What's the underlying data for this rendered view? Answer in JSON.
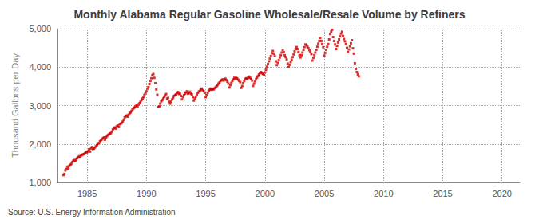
{
  "chart_data": {
    "type": "scatter",
    "title": "Monthly Alabama Regular Gasoline Wholesale/Resale Volume by Refiners",
    "ylabel": "Thousand Gallons per Day",
    "annotations": [
      "Source: U.S. Energy Information Administration"
    ],
    "color": "#cc0000",
    "marker": "square",
    "grid": true,
    "xlim": [
      1982.5,
      2021.5
    ],
    "ylim": [
      1000,
      5000
    ],
    "xticks": [
      1985,
      1990,
      1995,
      2000,
      2005,
      2010,
      2015,
      2020
    ],
    "yticks": [
      {
        "value": 1000,
        "label": "1,000"
      },
      {
        "value": 2000,
        "label": "2,000"
      },
      {
        "value": 3000,
        "label": "3,000"
      },
      {
        "value": 4000,
        "label": "4,000"
      },
      {
        "value": 5000,
        "label": "5,000"
      }
    ],
    "x": [
      1983.0,
      1983.083,
      1983.167,
      1983.25,
      1983.333,
      1983.417,
      1983.5,
      1983.583,
      1983.667,
      1983.75,
      1983.833,
      1983.917,
      1984.0,
      1984.083,
      1984.167,
      1984.25,
      1984.333,
      1984.417,
      1984.5,
      1984.583,
      1984.667,
      1984.75,
      1984.833,
      1984.917,
      1985.0,
      1985.083,
      1985.167,
      1985.25,
      1985.333,
      1985.417,
      1985.5,
      1985.583,
      1985.667,
      1985.75,
      1985.833,
      1985.917,
      1986.0,
      1986.083,
      1986.167,
      1986.25,
      1986.333,
      1986.417,
      1986.5,
      1986.583,
      1986.667,
      1986.75,
      1986.833,
      1986.917,
      1987.0,
      1987.083,
      1987.167,
      1987.25,
      1987.333,
      1987.417,
      1987.5,
      1987.583,
      1987.667,
      1987.75,
      1987.833,
      1987.917,
      1988.0,
      1988.083,
      1988.167,
      1988.25,
      1988.333,
      1988.417,
      1988.5,
      1988.583,
      1988.667,
      1988.75,
      1988.833,
      1988.917,
      1989.0,
      1989.083,
      1989.167,
      1989.25,
      1989.333,
      1989.417,
      1989.5,
      1989.583,
      1989.667,
      1989.75,
      1989.833,
      1989.917,
      1990.0,
      1990.083,
      1990.167,
      1990.25,
      1990.333,
      1990.417,
      1990.5,
      1990.583,
      1990.667,
      1990.75,
      1990.833,
      1990.917,
      1991.0,
      1991.083,
      1991.167,
      1991.25,
      1991.333,
      1991.417,
      1991.5,
      1991.583,
      1991.667,
      1991.75,
      1991.833,
      1991.917,
      1992.0,
      1992.083,
      1992.167,
      1992.25,
      1992.333,
      1992.417,
      1992.5,
      1992.583,
      1992.667,
      1992.75,
      1992.833,
      1992.917,
      1993.0,
      1993.083,
      1993.167,
      1993.25,
      1993.333,
      1993.417,
      1993.5,
      1993.583,
      1993.667,
      1993.75,
      1993.833,
      1993.917,
      1994.0,
      1994.083,
      1994.167,
      1994.25,
      1994.333,
      1994.417,
      1994.5,
      1994.583,
      1994.667,
      1994.75,
      1994.833,
      1994.917,
      1995.0,
      1995.083,
      1995.167,
      1995.25,
      1995.333,
      1995.417,
      1995.5,
      1995.583,
      1995.667,
      1995.75,
      1995.833,
      1995.917,
      1996.0,
      1996.083,
      1996.167,
      1996.25,
      1996.333,
      1996.417,
      1996.5,
      1996.583,
      1996.667,
      1996.75,
      1996.833,
      1996.917,
      1997.0,
      1997.083,
      1997.167,
      1997.25,
      1997.333,
      1997.417,
      1997.5,
      1997.583,
      1997.667,
      1997.75,
      1997.833,
      1997.917,
      1998.0,
      1998.083,
      1998.167,
      1998.25,
      1998.333,
      1998.417,
      1998.5,
      1998.583,
      1998.667,
      1998.75,
      1998.833,
      1998.917,
      1999.0,
      1999.083,
      1999.167,
      1999.25,
      1999.333,
      1999.417,
      1999.5,
      1999.583,
      1999.667,
      1999.75,
      1999.833,
      1999.917,
      2000.0,
      2000.083,
      2000.167,
      2000.25,
      2000.333,
      2000.417,
      2000.5,
      2000.583,
      2000.667,
      2000.75,
      2000.833,
      2000.917,
      2001.0,
      2001.083,
      2001.167,
      2001.25,
      2001.333,
      2001.417,
      2001.5,
      2001.583,
      2001.667,
      2001.75,
      2001.833,
      2001.917,
      2002.0,
      2002.083,
      2002.167,
      2002.25,
      2002.333,
      2002.417,
      2002.5,
      2002.583,
      2002.667,
      2002.75,
      2002.833,
      2002.917,
      2003.0,
      2003.083,
      2003.167,
      2003.25,
      2003.333,
      2003.417,
      2003.5,
      2003.583,
      2003.667,
      2003.75,
      2003.833,
      2003.917,
      2004.0,
      2004.083,
      2004.167,
      2004.25,
      2004.333,
      2004.417,
      2004.5,
      2004.583,
      2004.667,
      2004.75,
      2004.833,
      2004.917,
      2005.0,
      2005.083,
      2005.167,
      2005.25,
      2005.333,
      2005.417,
      2005.5,
      2005.583,
      2005.667,
      2005.75,
      2005.833,
      2005.917,
      2006.0,
      2006.083,
      2006.167,
      2006.25,
      2006.333,
      2006.417,
      2006.5,
      2006.583,
      2006.667,
      2006.75,
      2006.833,
      2006.917,
      2007.0,
      2007.083,
      2007.167,
      2007.25,
      2007.333,
      2007.417,
      2007.5,
      2007.583,
      2007.667,
      2007.75,
      2007.833,
      2007.917
    ],
    "values": [
      1190,
      1220,
      1310,
      1350,
      1410,
      1360,
      1430,
      1460,
      1480,
      1530,
      1560,
      1580,
      1550,
      1590,
      1630,
      1660,
      1680,
      1650,
      1700,
      1720,
      1730,
      1740,
      1760,
      1780,
      1790,
      1810,
      1860,
      1800,
      1880,
      1920,
      1870,
      1880,
      1910,
      1940,
      1970,
      2010,
      2020,
      2070,
      2100,
      2120,
      2150,
      2170,
      2110,
      2170,
      2200,
      2230,
      2250,
      2270,
      2280,
      2320,
      2380,
      2410,
      2430,
      2400,
      2460,
      2480,
      2440,
      2510,
      2530,
      2550,
      2580,
      2630,
      2690,
      2720,
      2740,
      2710,
      2760,
      2800,
      2820,
      2860,
      2900,
      2930,
      2950,
      2980,
      3020,
      2980,
      3030,
      3060,
      3100,
      3140,
      3180,
      3220,
      3280,
      3320,
      3370,
      3440,
      3480,
      3560,
      3640,
      3710,
      3790,
      3820,
      3720,
      3580,
      3420,
      3280,
      2960,
      2980,
      3050,
      3110,
      3140,
      3180,
      3220,
      3260,
      3300,
      3180,
      3200,
      3100,
      3050,
      3100,
      3160,
      3200,
      3250,
      3270,
      3290,
      3320,
      3350,
      3300,
      3310,
      3250,
      3160,
      3220,
      3270,
      3310,
      3340,
      3370,
      3310,
      3330,
      3360,
      3310,
      3290,
      3220,
      3130,
      3180,
      3230,
      3280,
      3330,
      3360,
      3380,
      3410,
      3440,
      3400,
      3370,
      3330,
      3220,
      3270,
      3330,
      3380,
      3410,
      3440,
      3410,
      3430,
      3420,
      3450,
      3470,
      3500,
      3530,
      3570,
      3600,
      3640,
      3660,
      3680,
      3650,
      3670,
      3700,
      3660,
      3620,
      3570,
      3470,
      3530,
      3590,
      3640,
      3680,
      3720,
      3690,
      3720,
      3700,
      3670,
      3640,
      3610,
      3460,
      3510,
      3580,
      3640,
      3690,
      3710,
      3690,
      3720,
      3750,
      3720,
      3690,
      3650,
      3510,
      3570,
      3630,
      3690,
      3730,
      3770,
      3810,
      3850,
      3870,
      3840,
      3820,
      3790,
      3860,
      3930,
      4010,
      4080,
      4150,
      4220,
      4290,
      4360,
      4420,
      4350,
      4290,
      4150,
      4050,
      4110,
      4180,
      4250,
      4310,
      4380,
      4450,
      4390,
      4310,
      4260,
      4200,
      4090,
      4000,
      4060,
      4130,
      4190,
      4260,
      4330,
      4410,
      4470,
      4520,
      4470,
      4390,
      4310,
      4250,
      4310,
      4380,
      4450,
      4520,
      4590,
      4570,
      4530,
      4490,
      4440,
      4390,
      4340,
      4170,
      4240,
      4310,
      4380,
      4450,
      4530,
      4610,
      4680,
      4760,
      4680,
      4600,
      4520,
      4300,
      4370,
      4450,
      4530,
      4600,
      4720,
      4860,
      4920,
      4970,
      4780,
      4680,
      4590,
      4470,
      4550,
      4640,
      4720,
      4800,
      4870,
      4920,
      4810,
      4730,
      4670,
      4600,
      4500,
      4390,
      4460,
      4540,
      4620,
      4700,
      4490,
      4350,
      4100,
      3950,
      3870,
      3810,
      3760
    ]
  }
}
